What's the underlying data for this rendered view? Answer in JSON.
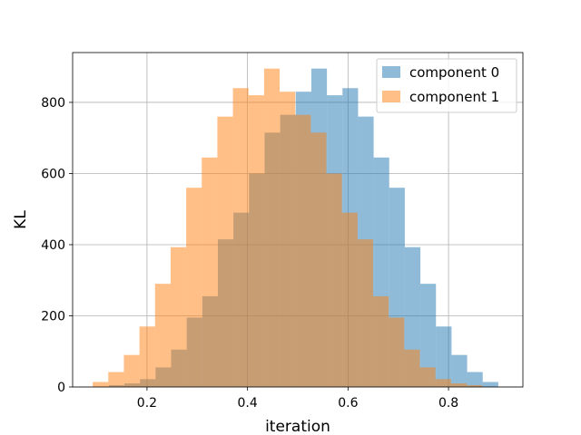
{
  "chart_data": {
    "type": "histogram",
    "title": "",
    "xlabel": "iteration",
    "ylabel": "KL",
    "xlim": [
      0.052,
      0.948
    ],
    "ylim": [
      0,
      940
    ],
    "xticks": [
      0.2,
      0.4,
      0.6,
      0.8
    ],
    "xtick_labels": [
      "0.2",
      "0.4",
      "0.6",
      "0.8"
    ],
    "yticks": [
      0,
      200,
      400,
      600,
      800
    ],
    "ytick_labels": [
      "0",
      "200",
      "400",
      "600",
      "800"
    ],
    "grid": true,
    "legend": "top-right",
    "alpha": 0.5,
    "series": [
      {
        "name": "component 0",
        "color": "#1f77b4",
        "bins": [
          {
            "x0": 0.124,
            "x1": 0.155,
            "y": 5
          },
          {
            "x0": 0.155,
            "x1": 0.186,
            "y": 10
          },
          {
            "x0": 0.186,
            "x1": 0.217,
            "y": 22
          },
          {
            "x0": 0.217,
            "x1": 0.248,
            "y": 55
          },
          {
            "x0": 0.248,
            "x1": 0.279,
            "y": 105
          },
          {
            "x0": 0.279,
            "x1": 0.31,
            "y": 195
          },
          {
            "x0": 0.31,
            "x1": 0.341,
            "y": 255
          },
          {
            "x0": 0.341,
            "x1": 0.372,
            "y": 415
          },
          {
            "x0": 0.372,
            "x1": 0.403,
            "y": 490
          },
          {
            "x0": 0.403,
            "x1": 0.434,
            "y": 600
          },
          {
            "x0": 0.434,
            "x1": 0.465,
            "y": 715
          },
          {
            "x0": 0.465,
            "x1": 0.496,
            "y": 765
          },
          {
            "x0": 0.496,
            "x1": 0.527,
            "y": 830
          },
          {
            "x0": 0.527,
            "x1": 0.558,
            "y": 895
          },
          {
            "x0": 0.558,
            "x1": 0.589,
            "y": 820
          },
          {
            "x0": 0.589,
            "x1": 0.62,
            "y": 840
          },
          {
            "x0": 0.62,
            "x1": 0.651,
            "y": 760
          },
          {
            "x0": 0.651,
            "x1": 0.682,
            "y": 645
          },
          {
            "x0": 0.682,
            "x1": 0.713,
            "y": 560
          },
          {
            "x0": 0.713,
            "x1": 0.744,
            "y": 393
          },
          {
            "x0": 0.744,
            "x1": 0.775,
            "y": 290
          },
          {
            "x0": 0.775,
            "x1": 0.806,
            "y": 170
          },
          {
            "x0": 0.806,
            "x1": 0.837,
            "y": 90
          },
          {
            "x0": 0.837,
            "x1": 0.868,
            "y": 42
          },
          {
            "x0": 0.868,
            "x1": 0.899,
            "y": 14
          }
        ]
      },
      {
        "name": "component 1",
        "color": "#ff7f0e",
        "bins": [
          {
            "x0": 0.092,
            "x1": 0.123,
            "y": 14
          },
          {
            "x0": 0.123,
            "x1": 0.154,
            "y": 42
          },
          {
            "x0": 0.154,
            "x1": 0.185,
            "y": 90
          },
          {
            "x0": 0.185,
            "x1": 0.216,
            "y": 170
          },
          {
            "x0": 0.216,
            "x1": 0.247,
            "y": 290
          },
          {
            "x0": 0.247,
            "x1": 0.278,
            "y": 393
          },
          {
            "x0": 0.278,
            "x1": 0.309,
            "y": 560
          },
          {
            "x0": 0.309,
            "x1": 0.34,
            "y": 645
          },
          {
            "x0": 0.34,
            "x1": 0.371,
            "y": 760
          },
          {
            "x0": 0.371,
            "x1": 0.402,
            "y": 840
          },
          {
            "x0": 0.402,
            "x1": 0.433,
            "y": 820
          },
          {
            "x0": 0.433,
            "x1": 0.464,
            "y": 895
          },
          {
            "x0": 0.464,
            "x1": 0.495,
            "y": 830
          },
          {
            "x0": 0.495,
            "x1": 0.526,
            "y": 765
          },
          {
            "x0": 0.526,
            "x1": 0.557,
            "y": 715
          },
          {
            "x0": 0.557,
            "x1": 0.588,
            "y": 600
          },
          {
            "x0": 0.588,
            "x1": 0.619,
            "y": 490
          },
          {
            "x0": 0.619,
            "x1": 0.65,
            "y": 415
          },
          {
            "x0": 0.65,
            "x1": 0.681,
            "y": 255
          },
          {
            "x0": 0.681,
            "x1": 0.712,
            "y": 195
          },
          {
            "x0": 0.712,
            "x1": 0.743,
            "y": 105
          },
          {
            "x0": 0.743,
            "x1": 0.774,
            "y": 55
          },
          {
            "x0": 0.774,
            "x1": 0.805,
            "y": 22
          },
          {
            "x0": 0.805,
            "x1": 0.836,
            "y": 10
          },
          {
            "x0": 0.836,
            "x1": 0.867,
            "y": 5
          }
        ]
      }
    ]
  }
}
